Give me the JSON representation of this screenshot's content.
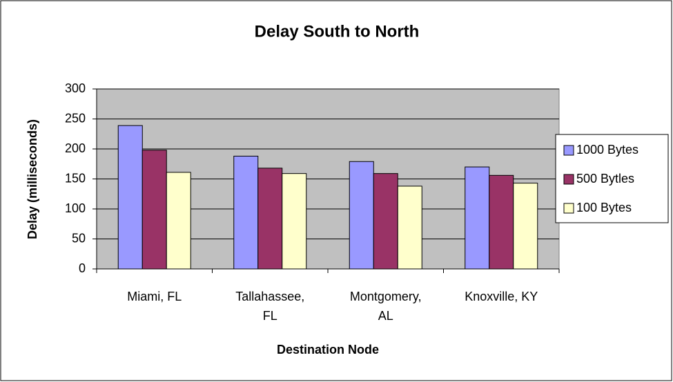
{
  "chart_data": {
    "type": "bar",
    "title": "Delay South to North",
    "xlabel": "Destination Node",
    "ylabel": "Delay (milliseconds)",
    "categories": [
      "Miami, FL",
      "Tallahassee, FL",
      "Montgomery, AL",
      "Knoxville, KY"
    ],
    "series": [
      {
        "name": "1000 Bytes",
        "color": "#9999ff",
        "values": [
          239,
          188,
          179,
          170
        ]
      },
      {
        "name": "500 Bytles",
        "color": "#993366",
        "values": [
          198,
          168,
          159,
          156
        ]
      },
      {
        "name": "100 Bytes",
        "color": "#ffffcc",
        "values": [
          161,
          159,
          138,
          143
        ]
      }
    ],
    "ylim": [
      0,
      300
    ],
    "yticks": [
      0,
      50,
      100,
      150,
      200,
      250,
      300
    ],
    "grid": true,
    "legend": "right"
  }
}
